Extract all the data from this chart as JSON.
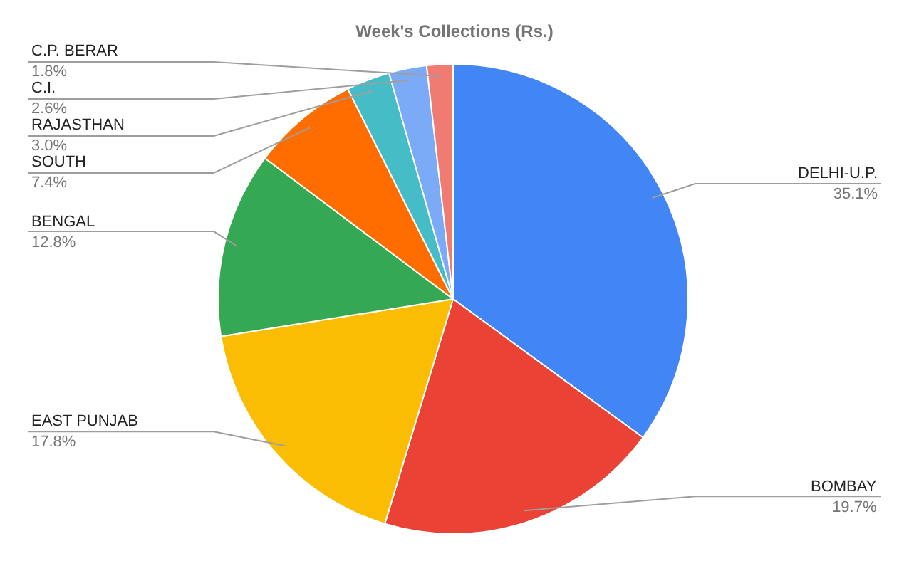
{
  "chart_data": {
    "type": "pie",
    "title": "Week's Collections (Rs.)",
    "categories": [
      "DELHI-U.P.",
      "BOMBAY",
      "EAST PUNJAB",
      "BENGAL",
      "SOUTH",
      "RAJASTHAN",
      "C.I.",
      "C.P. BERAR"
    ],
    "values": [
      35.1,
      19.7,
      17.8,
      12.8,
      7.4,
      3.0,
      2.6,
      1.8
    ],
    "value_labels": [
      "35.1%",
      "19.7%",
      "17.8%",
      "12.8%",
      "7.4%",
      "3.0%",
      "2.6%",
      "1.8%"
    ],
    "colors": [
      "#4285f4",
      "#ea4335",
      "#fbbc04",
      "#34a853",
      "#ff6d01",
      "#46bdc6",
      "#7baaf7",
      "#f07b72"
    ],
    "legend": false
  }
}
